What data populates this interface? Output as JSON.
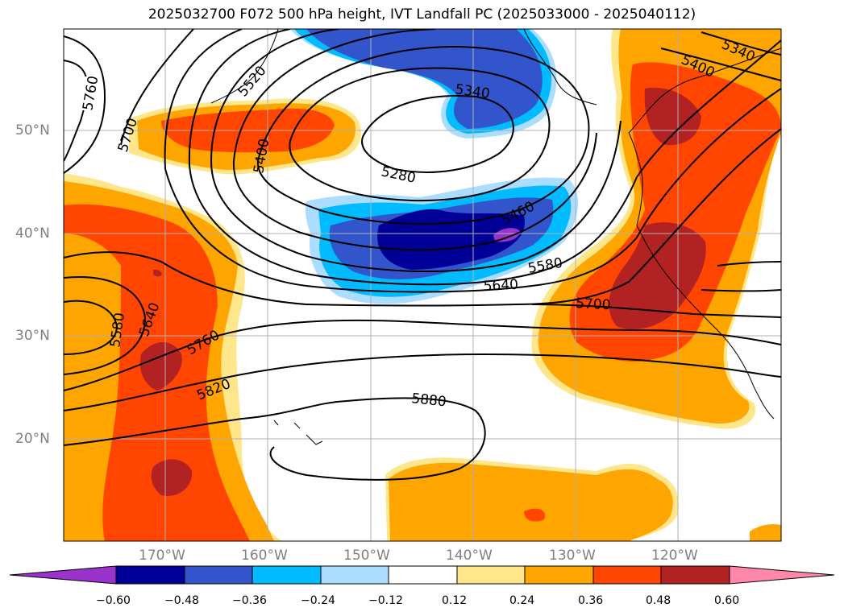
{
  "title": "2025032700 F072 500 hPa height, IVT Landfall PC (2025033000 - 2025040112)",
  "latitude_labels": [
    "50°N",
    "40°N",
    "30°N",
    "20°N"
  ],
  "longitude_labels": [
    "170°W",
    "160°W",
    "150°W",
    "140°W",
    "130°W",
    "120°W"
  ],
  "contour_labels": [
    "5760",
    "5700",
    "5520",
    "5400",
    "5340",
    "5280",
    "5460",
    "5580",
    "5640",
    "5700",
    "5580",
    "5640",
    "5760",
    "5820",
    "5880",
    "5400",
    "5340"
  ],
  "colorbar": {
    "ticks": [
      "−0.60",
      "−0.48",
      "−0.36",
      "−0.24",
      "−0.12",
      "0.12",
      "0.24",
      "0.36",
      "0.48",
      "0.60"
    ],
    "colors": [
      "#9933cc",
      "#000099",
      "#3355cc",
      "#00bbff",
      "#aaddff",
      "#ffffff",
      "#ffe68a",
      "#ffa500",
      "#ff4500",
      "#b22222",
      "#ff88aa"
    ]
  },
  "colors": {
    "pc_0_24": "#ffa500",
    "pc_0_36": "#ff4500",
    "pc_0_48": "#b22222",
    "nc_0_12": "#aaddff",
    "nc_0_24": "#00bbff",
    "nc_0_36": "#3355cc",
    "nc_0_48": "#000099",
    "nc_0_60": "#9933cc"
  }
}
